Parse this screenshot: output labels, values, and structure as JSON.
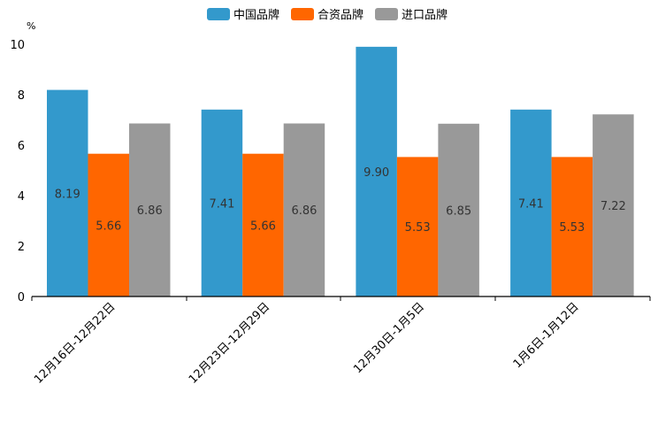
{
  "chart_data": {
    "type": "bar",
    "title": "",
    "xlabel": "",
    "ylabel": "%",
    "ylim": [
      0,
      10
    ],
    "yticks": [
      0,
      2,
      4,
      6,
      8,
      10
    ],
    "categories": [
      "12月16日-12月22日",
      "12月23日-12月29日",
      "12月30日-1月5日",
      "1月6日-1月12日"
    ],
    "series": [
      {
        "name": "中国品牌",
        "color": "#3399CC",
        "values": [
          8.19,
          7.41,
          9.9,
          7.41
        ],
        "labels": [
          "8.19",
          "7.41",
          "9.90",
          "7.41"
        ]
      },
      {
        "name": "合资品牌",
        "color": "#FF6600",
        "values": [
          5.66,
          5.66,
          5.53,
          5.53
        ],
        "labels": [
          "5.66",
          "5.66",
          "5.53",
          "5.53"
        ]
      },
      {
        "name": "进口品牌",
        "color": "#999999",
        "values": [
          6.86,
          6.86,
          6.85,
          7.22
        ],
        "labels": [
          "6.86",
          "6.86",
          "6.85",
          "7.22"
        ]
      }
    ],
    "legend_position": "top-center",
    "grid": false
  }
}
